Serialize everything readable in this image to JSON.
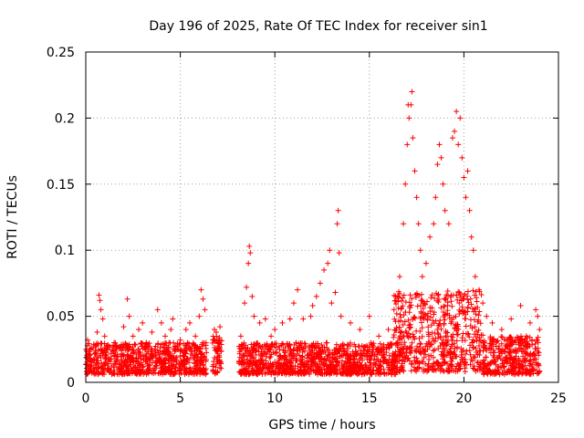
{
  "chart_data": {
    "type": "scatter",
    "title": "Day 196 of 2025, Rate Of TEC Index for receiver sin1",
    "xlabel": "GPS time / hours",
    "ylabel": "ROTI / TECUs",
    "xlim": [
      0,
      25
    ],
    "ylim": [
      0,
      0.25
    ],
    "xticks": [
      0,
      5,
      10,
      15,
      20,
      25
    ],
    "xtick_labels": [
      "0",
      "5",
      "10",
      "15",
      "20",
      "25"
    ],
    "yticks": [
      0,
      0.05,
      0.1,
      0.15,
      0.2,
      0.25
    ],
    "ytick_labels": [
      "0",
      "0.05",
      "0.1",
      "0.15",
      "0.2",
      "0.25"
    ],
    "grid": true,
    "legend": "none",
    "marker": "+",
    "series": [
      {
        "color": "#ff0000",
        "points": [
          [
            0.1,
            0.032
          ],
          [
            0.2,
            0.018
          ],
          [
            0.3,
            0.026
          ],
          [
            0.5,
            0.022
          ],
          [
            0.6,
            0.038
          ],
          [
            0.7,
            0.066
          ],
          [
            0.75,
            0.062
          ],
          [
            0.8,
            0.055
          ],
          [
            0.9,
            0.048
          ],
          [
            1.0,
            0.035
          ],
          [
            1.2,
            0.028
          ],
          [
            1.5,
            0.03
          ],
          [
            1.8,
            0.026
          ],
          [
            2.0,
            0.042
          ],
          [
            2.2,
            0.063
          ],
          [
            2.3,
            0.05
          ],
          [
            2.5,
            0.035
          ],
          [
            2.8,
            0.04
          ],
          [
            3.0,
            0.045
          ],
          [
            3.2,
            0.03
          ],
          [
            3.5,
            0.038
          ],
          [
            3.8,
            0.055
          ],
          [
            4.0,
            0.045
          ],
          [
            4.2,
            0.035
          ],
          [
            4.5,
            0.04
          ],
          [
            4.6,
            0.048
          ],
          [
            5.0,
            0.032
          ],
          [
            5.3,
            0.04
          ],
          [
            5.5,
            0.045
          ],
          [
            5.8,
            0.035
          ],
          [
            6.0,
            0.05
          ],
          [
            6.1,
            0.07
          ],
          [
            6.2,
            0.063
          ],
          [
            6.3,
            0.055
          ],
          [
            6.8,
            0.04
          ],
          [
            6.9,
            0.038
          ],
          [
            7.0,
            0.03
          ],
          [
            7.1,
            0.042
          ],
          [
            8.2,
            0.035
          ],
          [
            8.4,
            0.06
          ],
          [
            8.5,
            0.072
          ],
          [
            8.6,
            0.09
          ],
          [
            8.65,
            0.103
          ],
          [
            8.7,
            0.098
          ],
          [
            8.8,
            0.065
          ],
          [
            8.9,
            0.05
          ],
          [
            9.2,
            0.045
          ],
          [
            9.5,
            0.048
          ],
          [
            9.8,
            0.035
          ],
          [
            10.0,
            0.04
          ],
          [
            10.4,
            0.045
          ],
          [
            10.8,
            0.048
          ],
          [
            11.0,
            0.06
          ],
          [
            11.2,
            0.07
          ],
          [
            11.5,
            0.048
          ],
          [
            11.9,
            0.05
          ],
          [
            12.0,
            0.058
          ],
          [
            12.2,
            0.065
          ],
          [
            12.4,
            0.075
          ],
          [
            12.6,
            0.085
          ],
          [
            12.8,
            0.09
          ],
          [
            12.9,
            0.1
          ],
          [
            13.0,
            0.06
          ],
          [
            13.2,
            0.068
          ],
          [
            13.3,
            0.12
          ],
          [
            13.35,
            0.13
          ],
          [
            13.4,
            0.098
          ],
          [
            13.5,
            0.05
          ],
          [
            14.0,
            0.045
          ],
          [
            14.5,
            0.04
          ],
          [
            15.0,
            0.05
          ],
          [
            15.5,
            0.035
          ],
          [
            16.0,
            0.04
          ],
          [
            16.3,
            0.055
          ],
          [
            16.6,
            0.08
          ],
          [
            16.8,
            0.12
          ],
          [
            16.9,
            0.15
          ],
          [
            17.0,
            0.18
          ],
          [
            17.05,
            0.21
          ],
          [
            17.1,
            0.2
          ],
          [
            17.2,
            0.21
          ],
          [
            17.25,
            0.22
          ],
          [
            17.3,
            0.185
          ],
          [
            17.4,
            0.16
          ],
          [
            17.5,
            0.14
          ],
          [
            17.6,
            0.12
          ],
          [
            17.7,
            0.1
          ],
          [
            17.8,
            0.08
          ],
          [
            18.0,
            0.09
          ],
          [
            18.2,
            0.11
          ],
          [
            18.4,
            0.12
          ],
          [
            18.5,
            0.14
          ],
          [
            18.6,
            0.165
          ],
          [
            18.7,
            0.18
          ],
          [
            18.8,
            0.17
          ],
          [
            18.9,
            0.15
          ],
          [
            19.0,
            0.13
          ],
          [
            19.2,
            0.12
          ],
          [
            19.4,
            0.185
          ],
          [
            19.5,
            0.19
          ],
          [
            19.6,
            0.205
          ],
          [
            19.7,
            0.18
          ],
          [
            19.8,
            0.2
          ],
          [
            19.9,
            0.17
          ],
          [
            20.0,
            0.155
          ],
          [
            20.1,
            0.14
          ],
          [
            20.2,
            0.16
          ],
          [
            20.3,
            0.13
          ],
          [
            20.4,
            0.11
          ],
          [
            20.5,
            0.1
          ],
          [
            20.6,
            0.08
          ],
          [
            20.8,
            0.07
          ],
          [
            21.0,
            0.06
          ],
          [
            21.2,
            0.05
          ],
          [
            21.5,
            0.045
          ],
          [
            22.0,
            0.04
          ],
          [
            22.5,
            0.048
          ],
          [
            23.0,
            0.058
          ],
          [
            23.3,
            0.035
          ],
          [
            23.5,
            0.045
          ],
          [
            23.8,
            0.055
          ],
          [
            23.9,
            0.05
          ],
          [
            24.0,
            0.04
          ]
        ]
      }
    ],
    "dense_bands": [
      {
        "x_from": 0.0,
        "x_to": 6.4,
        "y_from": 0.006,
        "y_to": 0.03
      },
      {
        "x_from": 6.7,
        "x_to": 7.2,
        "y_from": 0.006,
        "y_to": 0.035
      },
      {
        "x_from": 8.1,
        "x_to": 16.5,
        "y_from": 0.006,
        "y_to": 0.03
      },
      {
        "x_from": 16.2,
        "x_to": 21.0,
        "y_from": 0.008,
        "y_to": 0.07
      },
      {
        "x_from": 21.0,
        "x_to": 24.0,
        "y_from": 0.006,
        "y_to": 0.035
      }
    ]
  }
}
